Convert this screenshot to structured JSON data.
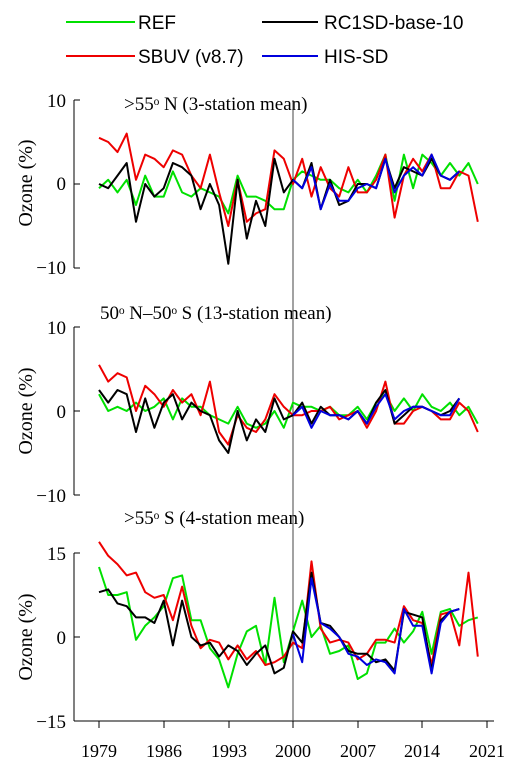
{
  "legend": [
    {
      "name": "REF",
      "color": "#00e000"
    },
    {
      "name": "RC1SD-base-10",
      "color": "#000000"
    },
    {
      "name": "SBUV (v8.7)",
      "color": "#ee0000"
    },
    {
      "name": "HIS-SD",
      "color": "#0000dd"
    }
  ],
  "chart_data": [
    {
      "type": "line",
      "title": ">55ᵒ N (3-station mean)",
      "ylabel": "Ozone (%)",
      "ylim": [
        -10,
        10
      ],
      "yticks": [
        "10",
        "0",
        "−10"
      ],
      "xlim": [
        1978.5,
        2021
      ],
      "vline": 2000,
      "series": [
        {
          "name": "REF",
          "x": [
            1979,
            1980,
            1981,
            1982,
            1983,
            1984,
            1985,
            1986,
            1987,
            1988,
            1989,
            1990,
            1991,
            1992,
            1993,
            1994,
            1995,
            1996,
            1997,
            1998,
            1999,
            2000,
            2001,
            2002,
            2003,
            2004,
            2005,
            2006,
            2007,
            2008,
            2009,
            2010,
            2011,
            2012,
            2013,
            2014,
            2015,
            2016,
            2017,
            2018,
            2019,
            2020
          ],
          "values": [
            -0.5,
            0.5,
            -1.0,
            0.5,
            -2.5,
            1.0,
            -1.5,
            -1.5,
            1.5,
            -1.0,
            -1.5,
            -0.5,
            -1.0,
            -1.5,
            -3.5,
            1.0,
            -1.5,
            -1.5,
            -2.0,
            -3.0,
            -3.0,
            0.5,
            1.5,
            1.0,
            0.5,
            0.5,
            -0.5,
            -1.0,
            0.5,
            -1.0,
            1.0,
            3.5,
            -2.0,
            3.5,
            -0.5,
            3.5,
            2.5,
            1.0,
            2.5,
            1.0,
            2.5,
            0.0
          ]
        },
        {
          "name": "RC1SD-base-10",
          "x": [
            1979,
            1980,
            1981,
            1982,
            1983,
            1984,
            1985,
            1986,
            1987,
            1988,
            1989,
            1990,
            1991,
            1992,
            1993,
            1994,
            1995,
            1996,
            1997,
            1998,
            1999,
            2000,
            2001,
            2002,
            2003,
            2004,
            2005,
            2006,
            2007,
            2008,
            2009,
            2010,
            2011,
            2012,
            2013,
            2014,
            2015,
            2016,
            2017,
            2018
          ],
          "values": [
            0.0,
            -0.5,
            1.0,
            2.5,
            -4.5,
            0.0,
            -1.5,
            -0.5,
            2.5,
            2.0,
            1.0,
            -3.0,
            0.0,
            -2.5,
            -9.5,
            0.5,
            -6.5,
            -2.0,
            -5.0,
            3.0,
            -1.0,
            0.5,
            -0.5,
            2.5,
            -3.0,
            0.5,
            -2.5,
            -2.0,
            0.0,
            0.0,
            -0.5,
            3.0,
            -0.5,
            2.0,
            1.5,
            1.0,
            3.0,
            1.0,
            0.5,
            1.5
          ]
        },
        {
          "name": "SBUV (v8.7)",
          "x": [
            1979,
            1980,
            1981,
            1982,
            1983,
            1984,
            1985,
            1986,
            1987,
            1988,
            1989,
            1990,
            1991,
            1992,
            1993,
            1994,
            1995,
            1996,
            1997,
            1998,
            1999,
            2000,
            2001,
            2002,
            2003,
            2004,
            2005,
            2006,
            2007,
            2008,
            2009,
            2010,
            2011,
            2012,
            2013,
            2014,
            2015,
            2016,
            2017,
            2018,
            2019,
            2020
          ],
          "values": [
            5.5,
            5.0,
            3.8,
            6.0,
            0.5,
            3.5,
            3.0,
            2.0,
            4.0,
            3.5,
            1.0,
            -0.5,
            3.5,
            -1.0,
            -5.0,
            0.5,
            -4.5,
            -3.5,
            -3.0,
            4.0,
            3.0,
            0.0,
            3.0,
            -1.5,
            2.0,
            -0.5,
            -1.5,
            2.0,
            -1.0,
            -1.0,
            0.5,
            3.5,
            -4.0,
            1.0,
            3.0,
            1.5,
            3.5,
            -0.5,
            -0.5,
            1.5,
            1.0,
            -4.5
          ]
        },
        {
          "name": "HIS-SD",
          "x": [
            2000,
            2001,
            2002,
            2003,
            2004,
            2005,
            2006,
            2007,
            2008,
            2009,
            2010,
            2011,
            2012,
            2013,
            2014,
            2015,
            2016,
            2017,
            2018
          ],
          "values": [
            0.5,
            -0.5,
            2.0,
            -3.0,
            0.0,
            -2.0,
            -2.0,
            -0.5,
            0.0,
            -0.5,
            3.0,
            -1.0,
            1.0,
            2.0,
            1.0,
            3.5,
            1.0,
            0.5,
            1.5
          ]
        }
      ]
    },
    {
      "type": "line",
      "title": "50ᵒ N–50ᵒ S (13-station mean)",
      "ylabel": "Ozone (%)",
      "ylim": [
        -10,
        10
      ],
      "yticks": [
        "10",
        "0",
        "−10"
      ],
      "xlim": [
        1978.5,
        2021
      ],
      "vline": 2000,
      "series": [
        {
          "name": "REF",
          "x": [
            1979,
            1980,
            1981,
            1982,
            1983,
            1984,
            1985,
            1986,
            1987,
            1988,
            1989,
            1990,
            1991,
            1992,
            1993,
            1994,
            1995,
            1996,
            1997,
            1998,
            1999,
            2000,
            2001,
            2002,
            2003,
            2004,
            2005,
            2006,
            2007,
            2008,
            2009,
            2010,
            2011,
            2012,
            2013,
            2014,
            2015,
            2016,
            2017,
            2018,
            2019,
            2020
          ],
          "values": [
            2.0,
            0.0,
            0.5,
            0.0,
            1.0,
            0.0,
            0.5,
            1.5,
            -1.0,
            1.5,
            0.5,
            0.5,
            -0.5,
            -1.0,
            -1.5,
            0.5,
            -1.5,
            -2.0,
            -1.5,
            0.0,
            -2.0,
            1.0,
            0.5,
            0.5,
            0.0,
            0.5,
            -0.5,
            -0.5,
            0.5,
            -1.0,
            1.0,
            2.0,
            0.0,
            1.5,
            0.0,
            2.0,
            0.5,
            0.0,
            1.0,
            -0.5,
            0.5,
            -1.5
          ]
        },
        {
          "name": "RC1SD-base-10",
          "x": [
            1979,
            1980,
            1981,
            1982,
            1983,
            1984,
            1985,
            1986,
            1987,
            1988,
            1989,
            1990,
            1991,
            1992,
            1993,
            1994,
            1995,
            1996,
            1997,
            1998,
            1999,
            2000,
            2001,
            2002,
            2003,
            2004,
            2005,
            2006,
            2007,
            2008,
            2009,
            2010,
            2011,
            2012,
            2013,
            2014,
            2015,
            2016,
            2017,
            2018
          ],
          "values": [
            2.5,
            1.0,
            2.5,
            2.0,
            -2.5,
            1.5,
            -2.0,
            1.0,
            2.0,
            -1.0,
            1.0,
            0.0,
            -0.5,
            -3.5,
            -5.0,
            0.0,
            -3.5,
            -1.0,
            -2.5,
            1.5,
            -1.0,
            -0.5,
            1.0,
            -1.5,
            0.5,
            -0.5,
            -0.5,
            -1.0,
            0.0,
            -1.5,
            1.0,
            2.5,
            -1.5,
            -0.5,
            0.5,
            0.5,
            0.0,
            -0.5,
            0.0,
            1.5
          ]
        },
        {
          "name": "SBUV (v8.7)",
          "x": [
            1979,
            1980,
            1981,
            1982,
            1983,
            1984,
            1985,
            1986,
            1987,
            1988,
            1989,
            1990,
            1991,
            1992,
            1993,
            1994,
            1995,
            1996,
            1997,
            1998,
            1999,
            2000,
            2001,
            2002,
            2003,
            2004,
            2005,
            2006,
            2007,
            2008,
            2009,
            2010,
            2011,
            2012,
            2013,
            2014,
            2015,
            2016,
            2017,
            2018,
            2019,
            2020
          ],
          "values": [
            5.5,
            3.5,
            4.5,
            4.0,
            0.0,
            3.0,
            2.0,
            0.5,
            2.5,
            1.0,
            2.0,
            -0.5,
            3.5,
            -2.5,
            -4.0,
            -0.5,
            -2.0,
            -2.5,
            -1.0,
            2.0,
            0.5,
            -0.5,
            -0.5,
            0.0,
            0.0,
            0.5,
            -1.0,
            -0.5,
            0.0,
            -2.0,
            0.0,
            3.5,
            -1.5,
            -1.5,
            0.0,
            0.5,
            0.0,
            -1.0,
            -1.0,
            1.0,
            0.0,
            -2.5
          ]
        },
        {
          "name": "HIS-SD",
          "x": [
            2000,
            2001,
            2002,
            2003,
            2004,
            2005,
            2006,
            2007,
            2008,
            2009,
            2010,
            2011,
            2012,
            2013,
            2014,
            2015,
            2016,
            2017,
            2018
          ],
          "values": [
            -0.5,
            0.5,
            -2.0,
            0.0,
            -0.5,
            -0.5,
            -1.0,
            0.0,
            -1.5,
            0.5,
            2.0,
            -1.0,
            0.0,
            0.5,
            0.5,
            0.0,
            -0.5,
            -0.5,
            1.5
          ]
        }
      ]
    },
    {
      "type": "line",
      "title": ">55ᵒ S (4-station mean)",
      "ylabel": "Ozone (%)",
      "ylim": [
        -15,
        15
      ],
      "yticks": [
        "15",
        "0",
        "−15"
      ],
      "xlim": [
        1978.5,
        2021
      ],
      "xticks": [
        "1979",
        "1986",
        "1993",
        "2000",
        "2007",
        "2014",
        "2021"
      ],
      "vline": 2000,
      "series": [
        {
          "name": "REF",
          "x": [
            1979,
            1980,
            1981,
            1982,
            1983,
            1984,
            1985,
            1986,
            1987,
            1988,
            1989,
            1990,
            1991,
            1992,
            1993,
            1994,
            1995,
            1996,
            1997,
            1998,
            1999,
            2000,
            2001,
            2002,
            2003,
            2004,
            2005,
            2006,
            2007,
            2008,
            2009,
            2010,
            2011,
            2012,
            2013,
            2014,
            2015,
            2016,
            2017,
            2018,
            2019,
            2020
          ],
          "values": [
            12.5,
            7.5,
            7.5,
            8.0,
            -0.5,
            2.0,
            3.5,
            5.5,
            10.5,
            11.0,
            3.0,
            3.0,
            -2.0,
            -4.0,
            -9.0,
            -3.0,
            1.0,
            2.0,
            -5.0,
            7.0,
            -4.5,
            1.0,
            6.5,
            0.0,
            2.0,
            -3.0,
            -2.5,
            -1.5,
            -7.5,
            -6.5,
            -1.0,
            -1.0,
            1.5,
            -1.0,
            1.0,
            4.5,
            -3.0,
            4.5,
            5.0,
            2.0,
            3.0,
            3.5
          ]
        },
        {
          "name": "RC1SD-base-10",
          "x": [
            1979,
            1980,
            1981,
            1982,
            1983,
            1984,
            1985,
            1986,
            1987,
            1988,
            1989,
            1990,
            1991,
            1992,
            1993,
            1994,
            1995,
            1996,
            1997,
            1998,
            1999,
            2000,
            2001,
            2002,
            2003,
            2004,
            2005,
            2006,
            2007,
            2008,
            2009,
            2010,
            2011,
            2012,
            2013,
            2014,
            2015,
            2016,
            2017,
            2018
          ],
          "values": [
            8.0,
            8.5,
            6.0,
            5.5,
            3.5,
            3.5,
            2.5,
            6.5,
            -1.5,
            6.5,
            0.0,
            -1.5,
            -1.0,
            -3.5,
            -1.5,
            -2.5,
            -5.0,
            -3.0,
            -1.5,
            -6.5,
            -5.5,
            1.0,
            -1.0,
            11.5,
            2.5,
            2.0,
            0.0,
            -2.5,
            -3.0,
            -3.0,
            -4.5,
            -4.0,
            -6.0,
            4.5,
            4.0,
            3.5,
            -6.0,
            3.0,
            4.5,
            5.0
          ]
        },
        {
          "name": "SBUV (v8.7)",
          "x": [
            1979,
            1980,
            1981,
            1982,
            1983,
            1984,
            1985,
            1986,
            1987,
            1988,
            1989,
            1990,
            1991,
            1992,
            1993,
            1994,
            1995,
            1996,
            1997,
            1998,
            1999,
            2000,
            2001,
            2002,
            2003,
            2004,
            2005,
            2006,
            2007,
            2008,
            2009,
            2010,
            2011,
            2012,
            2013,
            2014,
            2015,
            2016,
            2017,
            2018,
            2019,
            2020
          ],
          "values": [
            17.0,
            14.5,
            13.0,
            11.0,
            11.5,
            8.0,
            7.0,
            7.5,
            3.0,
            9.0,
            2.0,
            -2.0,
            -0.5,
            -1.0,
            -4.0,
            -1.5,
            -4.0,
            -2.5,
            -5.0,
            -4.5,
            -3.5,
            -1.0,
            -2.0,
            13.5,
            1.5,
            -1.0,
            -0.5,
            -1.0,
            -4.0,
            -3.0,
            -0.5,
            -0.5,
            -1.0,
            5.5,
            3.0,
            2.5,
            -5.0,
            4.0,
            4.5,
            -1.5,
            11.5,
            -3.5
          ]
        },
        {
          "name": "HIS-SD",
          "x": [
            2000,
            2001,
            2002,
            2003,
            2004,
            2005,
            2006,
            2007,
            2008,
            2009,
            2010,
            2011,
            2012,
            2013,
            2014,
            2015,
            2016,
            2017,
            2018
          ],
          "values": [
            0.5,
            -4.5,
            10.5,
            2.5,
            1.5,
            0.0,
            -3.0,
            -3.5,
            -5.0,
            -4.0,
            -4.5,
            -6.5,
            5.0,
            2.0,
            2.0,
            -6.5,
            2.5,
            4.5,
            5.0
          ]
        }
      ]
    }
  ]
}
